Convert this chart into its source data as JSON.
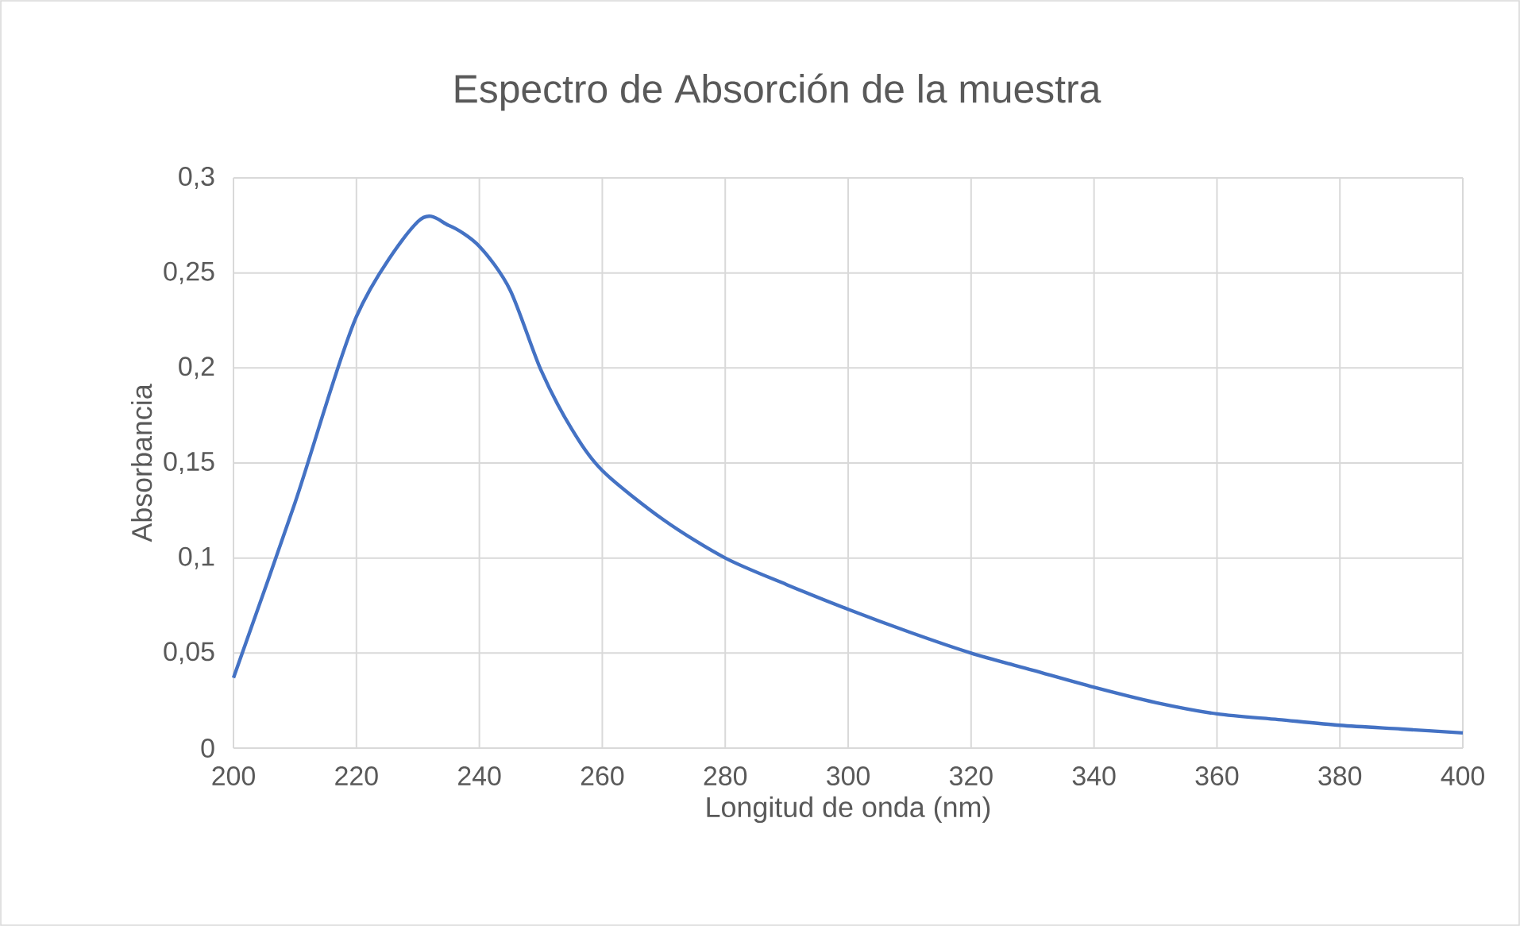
{
  "chart_data": {
    "type": "line",
    "title": "Espectro de Absorción de la muestra",
    "xlabel": "Longitud de onda (nm)",
    "ylabel": "Absorbancia",
    "x": [
      200,
      210,
      220,
      230,
      235,
      240,
      245,
      250,
      255,
      260,
      270,
      280,
      290,
      300,
      310,
      320,
      330,
      340,
      350,
      360,
      370,
      380,
      390,
      400
    ],
    "series": [
      {
        "color": "#4472c4",
        "values": [
          0.037,
          0.129,
          0.227,
          0.277,
          0.275,
          0.264,
          0.241,
          0.199,
          0.168,
          0.146,
          0.12,
          0.1,
          0.086,
          0.073,
          0.061,
          0.05,
          0.041,
          0.032,
          0.024,
          0.018,
          0.015,
          0.012,
          0.01,
          0.008
        ]
      }
    ],
    "xlim": [
      200,
      400
    ],
    "xticks": [
      200,
      220,
      240,
      260,
      280,
      300,
      320,
      340,
      360,
      380,
      400
    ],
    "ylim": [
      0,
      0.3
    ],
    "yticks": [
      {
        "value": 0,
        "label": "0"
      },
      {
        "value": 0.05,
        "label": "0,05"
      },
      {
        "value": 0.1,
        "label": "0,1"
      },
      {
        "value": 0.15,
        "label": "0,15"
      },
      {
        "value": 0.2,
        "label": "0,2"
      },
      {
        "value": 0.25,
        "label": "0,25"
      },
      {
        "value": 0.3,
        "label": "0,3"
      }
    ],
    "grid": true,
    "marker": "none",
    "line_style": "solid"
  }
}
